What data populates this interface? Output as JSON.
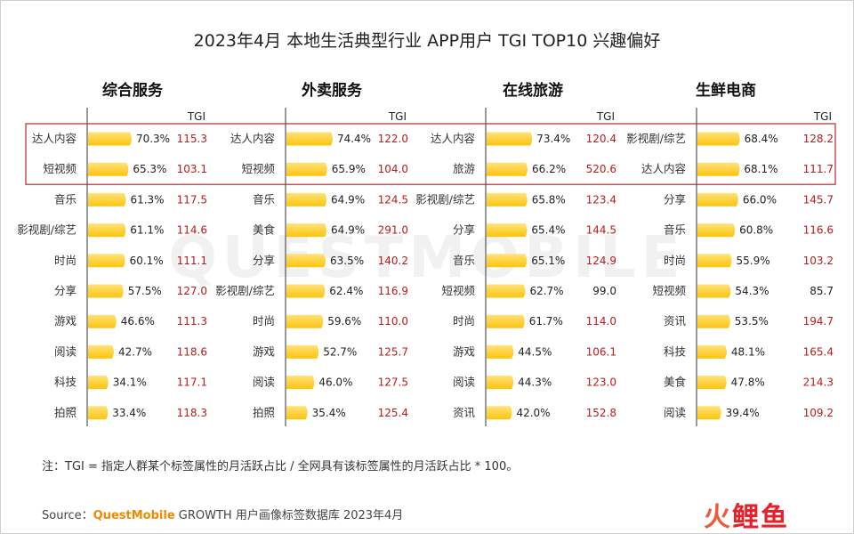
{
  "title": "2023年4月 本地生活典型行业 APP用户 TGI TOP10 兴趣偏好",
  "tgi_label": "TGI",
  "note": "注：TGI = 指定人群某个标签属性的月活跃占比 / 全网具有该标签属性的月活跃占比 * 100。",
  "source": {
    "prefix": "Source：",
    "brand": "QuestMobile",
    "growth": " GROWTH",
    "rest": " 用户画像标签数据库 2023年4月"
  },
  "watermark": "QUESTMOBILE",
  "logo": {
    "part1": "火",
    "part2": "鲤鱼"
  },
  "colors": {
    "bar": "#fdc40b",
    "bar_light": "#ffe27a",
    "tgi_high": "#b81c1c",
    "tgi_low": "#222222",
    "box": "#b52a30"
  },
  "chart_data": {
    "type": "bar",
    "orientation": "horizontal",
    "value_unit": "%",
    "highlighted_rows": [
      1,
      2
    ],
    "tgi_threshold": 100,
    "panels": [
      {
        "name": "综合服务",
        "categories": [
          "达人内容",
          "短视频",
          "音乐",
          "影视剧/综艺",
          "时尚",
          "分享",
          "游戏",
          "阅读",
          "科技",
          "拍照"
        ],
        "values": [
          70.3,
          65.3,
          61.3,
          61.1,
          60.1,
          57.5,
          46.6,
          42.7,
          34.1,
          33.4
        ],
        "tgi": [
          115.3,
          103.1,
          117.5,
          114.6,
          111.1,
          127.0,
          111.3,
          118.6,
          117.1,
          118.3
        ]
      },
      {
        "name": "外卖服务",
        "categories": [
          "达人内容",
          "短视频",
          "音乐",
          "美食",
          "分享",
          "影视剧/综艺",
          "时尚",
          "游戏",
          "阅读",
          "拍照"
        ],
        "values": [
          74.4,
          65.9,
          64.9,
          64.9,
          63.5,
          62.4,
          59.6,
          52.7,
          46.0,
          35.4
        ],
        "tgi": [
          122.0,
          104.0,
          124.5,
          291.0,
          140.2,
          116.9,
          110.0,
          125.7,
          127.5,
          125.4
        ]
      },
      {
        "name": "在线旅游",
        "categories": [
          "达人内容",
          "旅游",
          "影视剧/综艺",
          "分享",
          "音乐",
          "短视频",
          "时尚",
          "游戏",
          "阅读",
          "资讯"
        ],
        "values": [
          73.4,
          66.2,
          65.8,
          65.4,
          65.1,
          62.7,
          61.7,
          44.5,
          44.3,
          42.0
        ],
        "tgi": [
          120.4,
          520.6,
          123.4,
          144.5,
          124.9,
          99.0,
          114.0,
          106.1,
          123.0,
          152.8
        ]
      },
      {
        "name": "生鲜电商",
        "categories": [
          "影视剧/综艺",
          "达人内容",
          "分享",
          "音乐",
          "时尚",
          "短视频",
          "资讯",
          "科技",
          "美食",
          "阅读"
        ],
        "values": [
          68.4,
          68.1,
          66.0,
          60.8,
          55.9,
          54.3,
          53.5,
          48.1,
          47.8,
          39.4
        ],
        "tgi": [
          128.2,
          111.7,
          145.7,
          116.6,
          103.2,
          85.7,
          194.7,
          165.4,
          214.3,
          109.2
        ]
      }
    ]
  }
}
